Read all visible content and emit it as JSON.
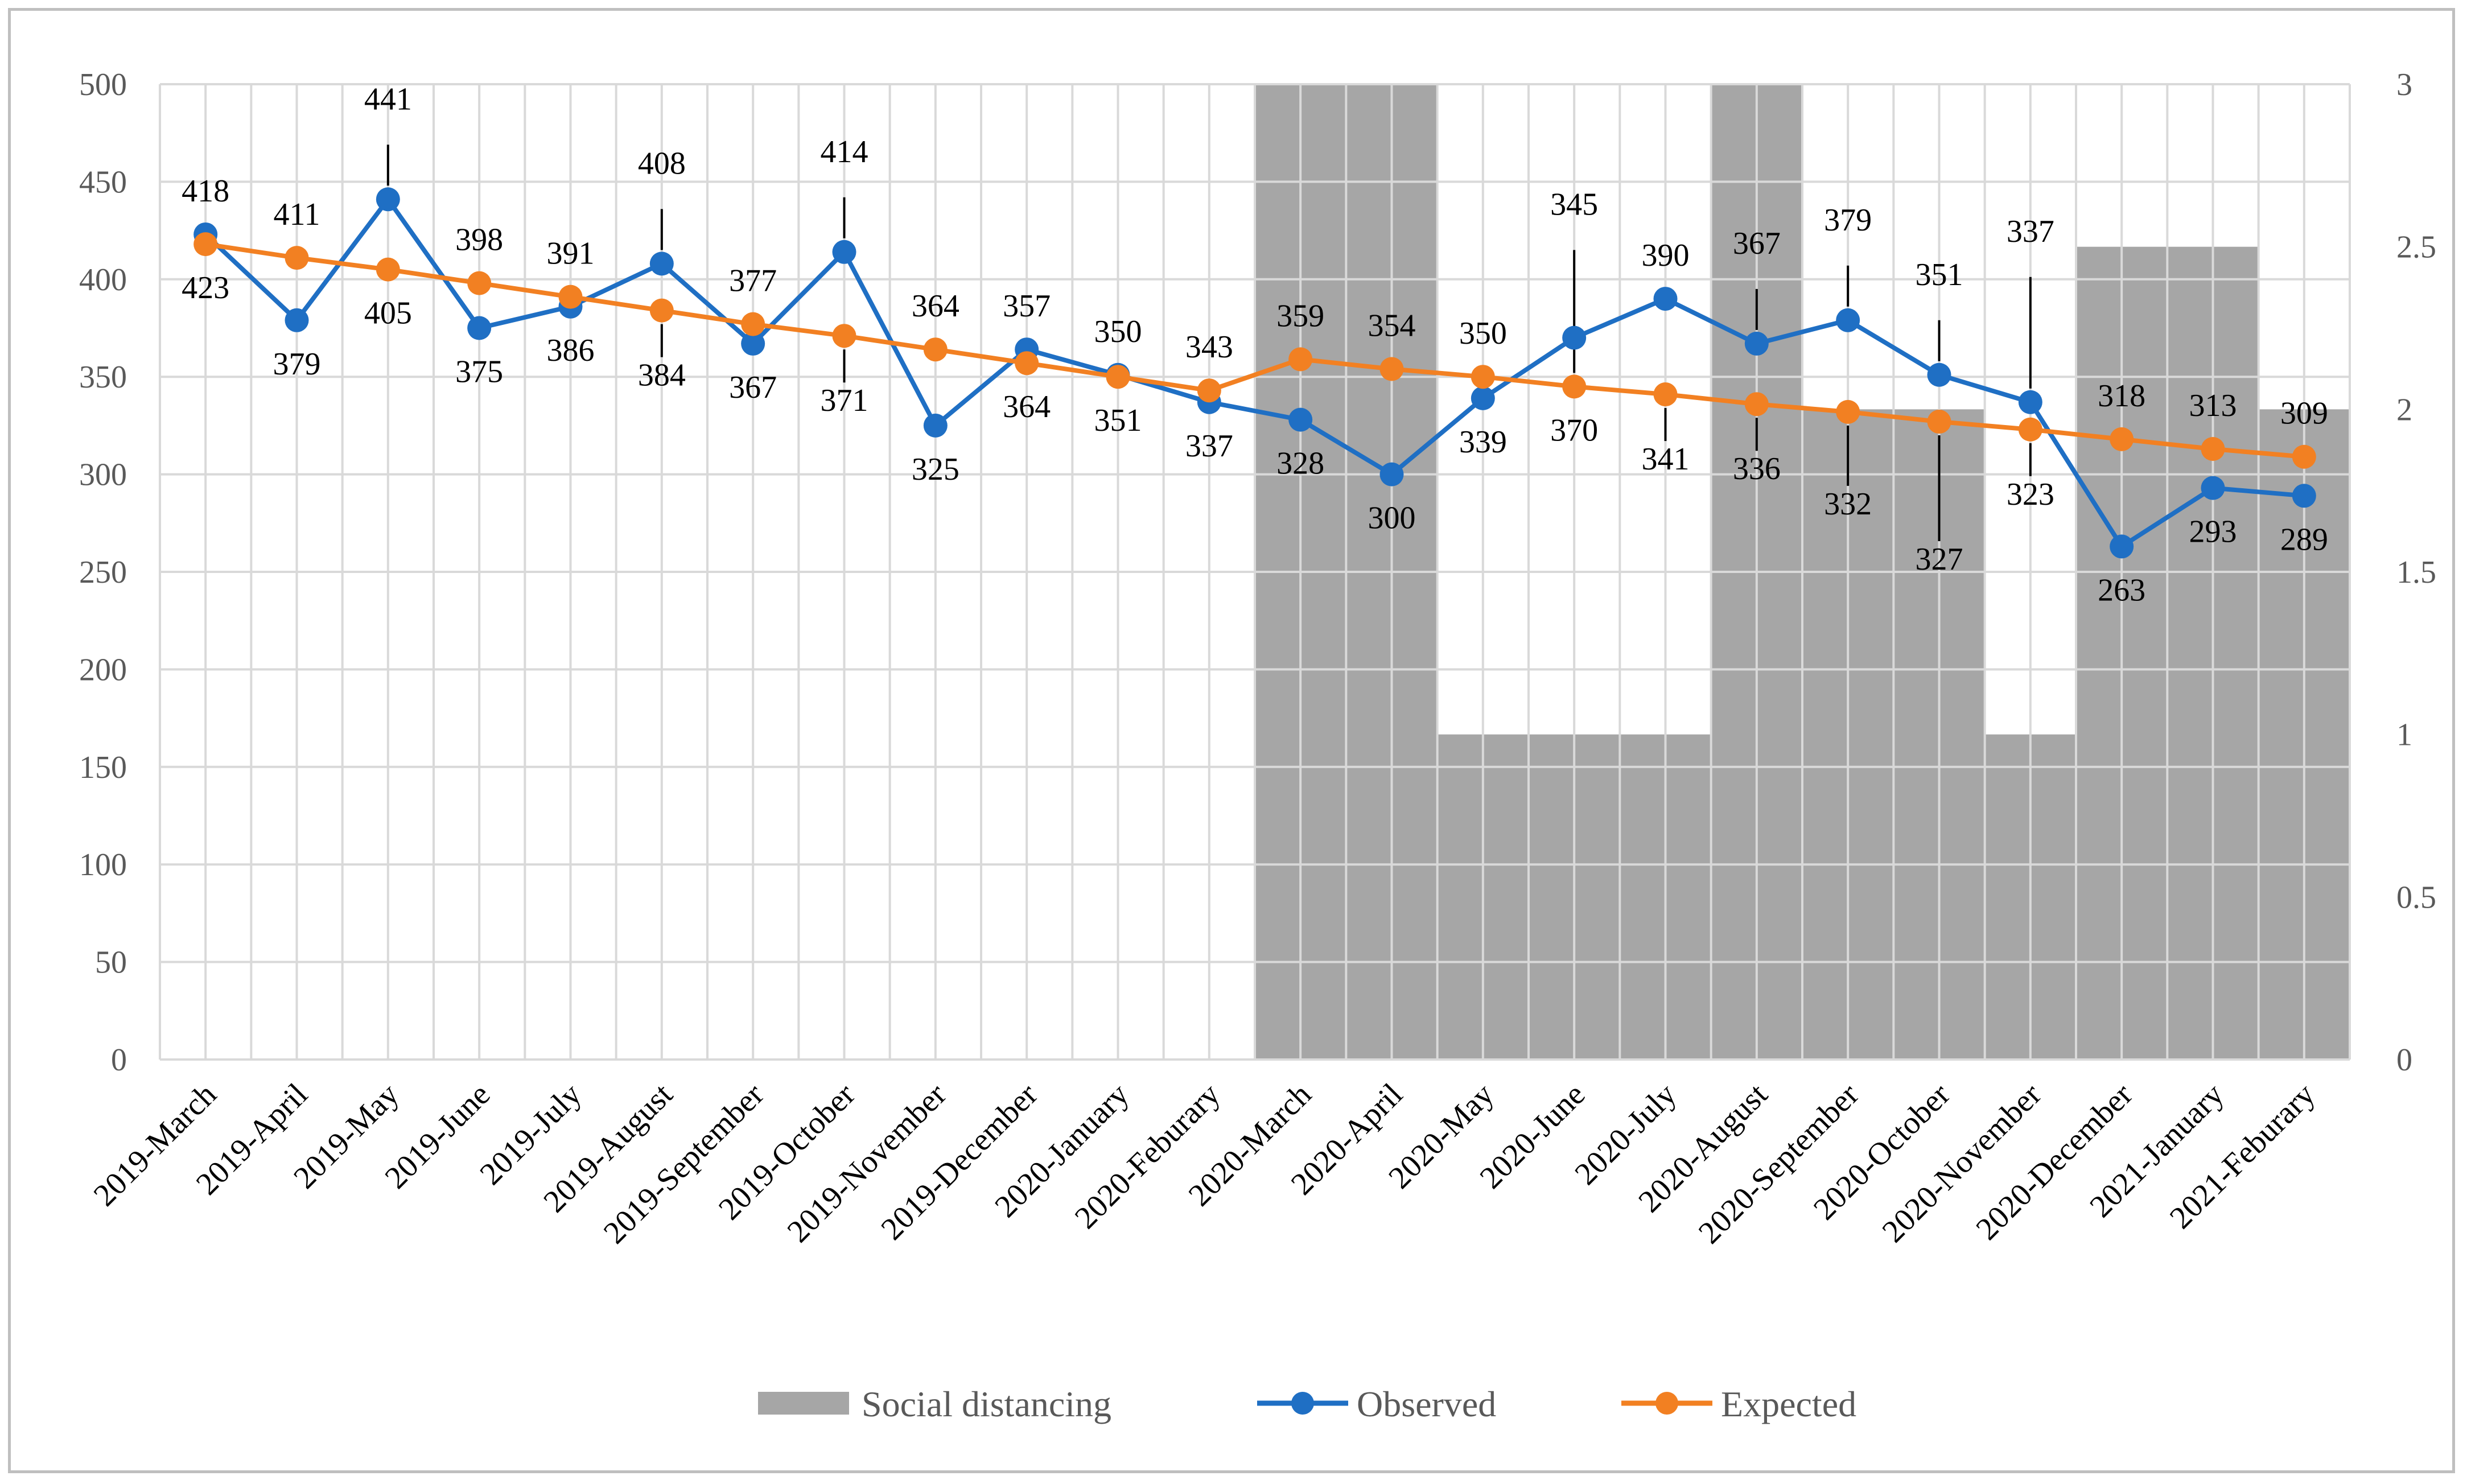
{
  "chart_data": {
    "type": "line",
    "title": "",
    "xlabel": "",
    "ylabel": "",
    "categories": [
      "2019-March",
      "2019-April",
      "2019-May",
      "2019-June",
      "2019-July",
      "2019-August",
      "2019-September",
      "2019-October",
      "2019-November",
      "2019-December",
      "2020-January",
      "2020-Feburary",
      "2020-March",
      "2020-April",
      "2020-May",
      "2020-June",
      "2020-July",
      "2020-August",
      "2020-September",
      "2020-October",
      "2020-November",
      "2020-December",
      "2021-January",
      "2021-Feburary"
    ],
    "ylim": [
      0,
      500
    ],
    "yticks": [
      "0",
      "50",
      "100",
      "150",
      "200",
      "250",
      "300",
      "350",
      "400",
      "450",
      "500"
    ],
    "y2lim": [
      0,
      3
    ],
    "y2ticks": [
      "0",
      "0.5",
      "1",
      "1.5",
      "2",
      "2.5",
      "3"
    ],
    "grid": true,
    "legend_position": "bottom",
    "series": [
      {
        "name": "Social distancing",
        "type": "bar",
        "axis": "secondary",
        "color": "#a6a6a6",
        "values": [
          0,
          0,
          0,
          0,
          0,
          0,
          0,
          0,
          0,
          0,
          0,
          0,
          3,
          3,
          1,
          1,
          1,
          3,
          2,
          2,
          1,
          2.5,
          2.5,
          2
        ]
      },
      {
        "name": "Observed",
        "type": "line",
        "axis": "primary",
        "color": "#1f6fc4",
        "values": [
          423,
          379,
          441,
          375,
          386,
          408,
          367,
          414,
          325,
          364,
          351,
          337,
          328,
          300,
          339,
          370,
          390,
          367,
          379,
          351,
          337,
          263,
          293,
          289
        ],
        "labels": [
          "423",
          "379",
          "441",
          "375",
          "386",
          "408",
          "367",
          "414",
          "325",
          "364",
          "351",
          "337",
          "328",
          "300",
          "339",
          "370",
          "390",
          "367",
          "379",
          "351",
          "337",
          "263",
          "293",
          "289"
        ]
      },
      {
        "name": "Expected",
        "type": "line",
        "axis": "primary",
        "color": "#f28022",
        "values": [
          418,
          411,
          405,
          398,
          391,
          384,
          377,
          371,
          364,
          357,
          350,
          343,
          359,
          354,
          350,
          345,
          341,
          336,
          332,
          327,
          323,
          318,
          313,
          309
        ],
        "labels": [
          "418",
          "411",
          "405",
          "398",
          "391",
          "384",
          "377",
          "371",
          "364",
          "357",
          "350",
          "343",
          "359",
          "354",
          "350",
          "345",
          "341",
          "336",
          "332",
          "327",
          "323",
          "318",
          "313",
          "309"
        ]
      }
    ]
  }
}
